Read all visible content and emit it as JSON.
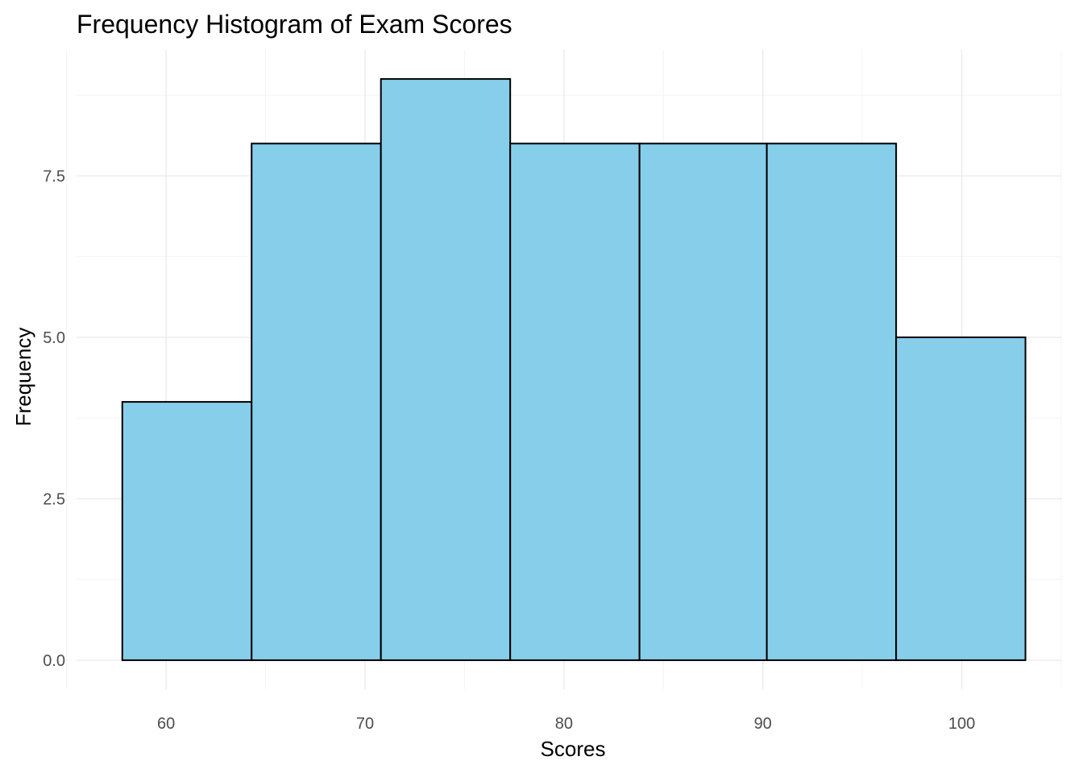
{
  "chart_data": {
    "type": "bar",
    "subtype": "histogram",
    "title": "Frequency Histogram of Exam Scores",
    "xlabel": "Scores",
    "ylabel": "Frequency",
    "bins": [
      {
        "x_start": 57.8,
        "x_end": 64.3,
        "count": 4
      },
      {
        "x_start": 64.3,
        "x_end": 70.8,
        "count": 8
      },
      {
        "x_start": 70.8,
        "x_end": 77.3,
        "count": 9
      },
      {
        "x_start": 77.3,
        "x_end": 83.8,
        "count": 8
      },
      {
        "x_start": 83.8,
        "x_end": 90.2,
        "count": 8
      },
      {
        "x_start": 90.2,
        "x_end": 96.7,
        "count": 8
      },
      {
        "x_start": 96.7,
        "x_end": 103.2,
        "count": 5
      }
    ],
    "xlim": [
      55.5,
      105.0
    ],
    "ylim": [
      -0.45,
      9.45
    ],
    "x_ticks": [
      60,
      70,
      80,
      90,
      100
    ],
    "x_tick_labels": [
      "60",
      "70",
      "80",
      "90",
      "100"
    ],
    "y_ticks": [
      0,
      2.5,
      5,
      7.5
    ],
    "y_tick_labels": [
      "0.0",
      "2.5",
      "5.0",
      "7.5"
    ],
    "x_minor_ticks": [
      55,
      65,
      75,
      85,
      95,
      105
    ],
    "y_minor_ticks": [
      1.25,
      3.75,
      6.25,
      8.75
    ],
    "grid": true,
    "legend": "none",
    "colors": {
      "bar_fill": "#87CEEB",
      "bar_outline": "#000000",
      "background": "#FFFFFF"
    }
  }
}
